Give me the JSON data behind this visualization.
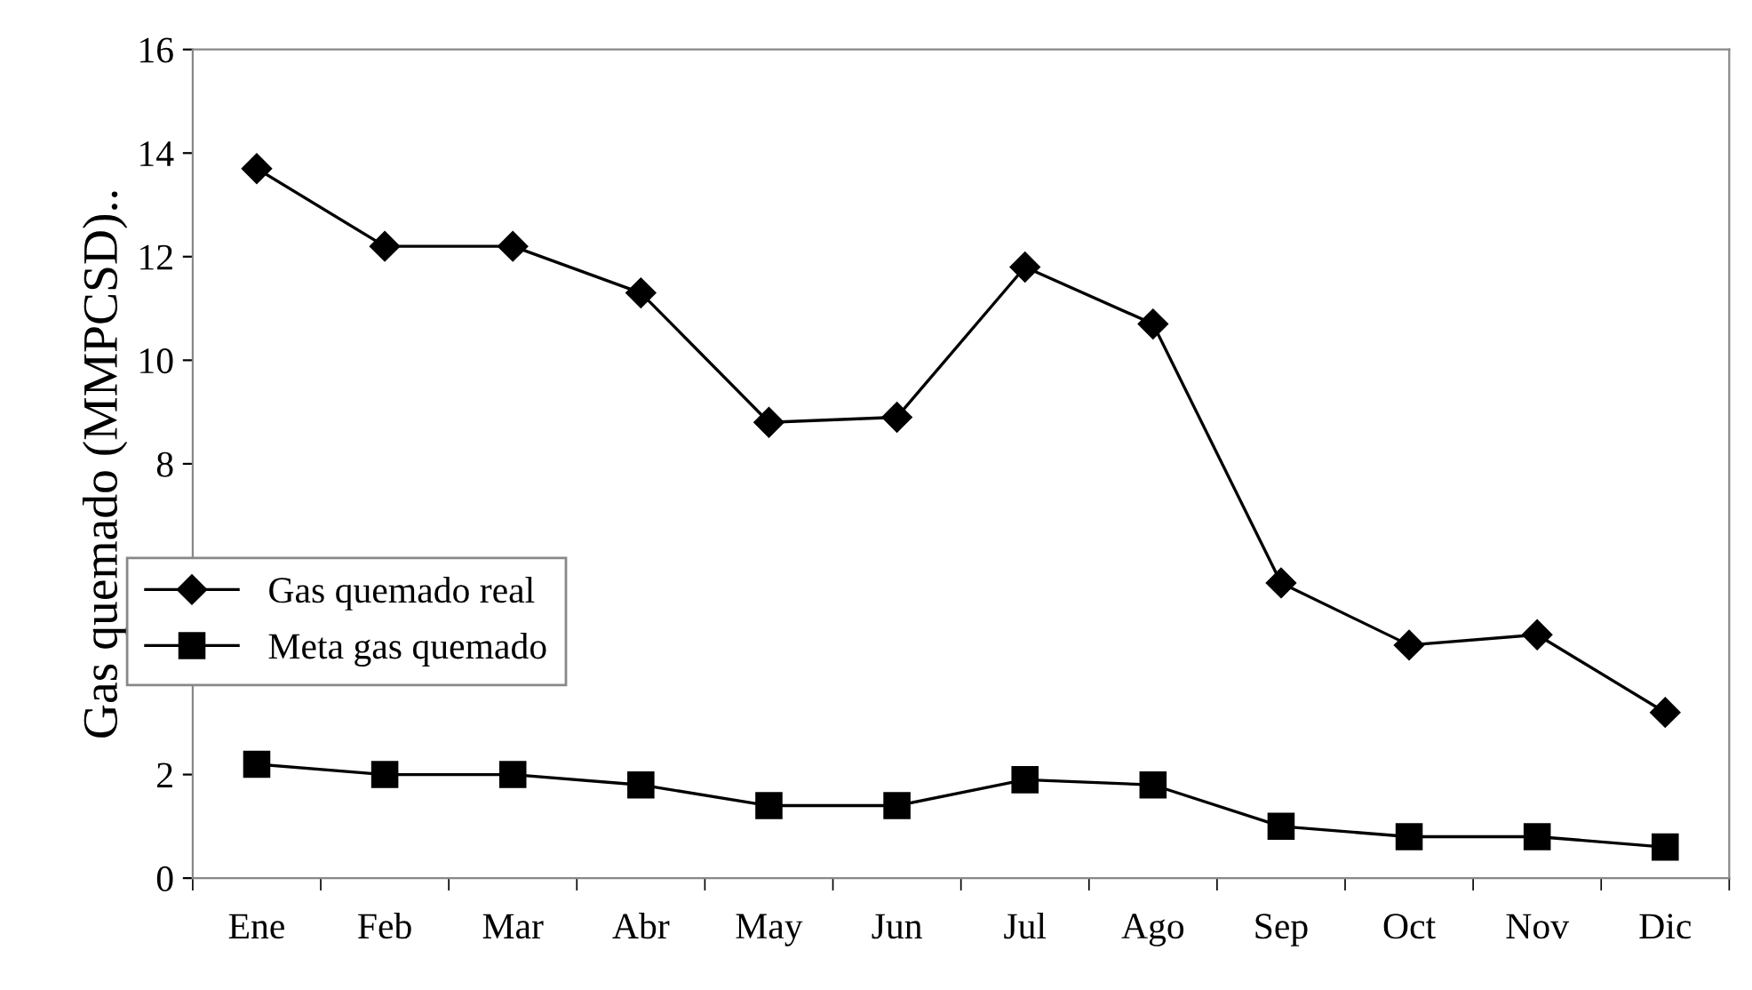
{
  "chart_data": {
    "type": "line",
    "ylabel": "Gas quemado (MMPCSD)..",
    "categories": [
      "Ene",
      "Feb",
      "Mar",
      "Abr",
      "May",
      "Jun",
      "Jul",
      "Ago",
      "Sep",
      "Oct",
      "Nov",
      "Dic"
    ],
    "series": [
      {
        "name": "Gas quemado real",
        "color": "#000000",
        "marker": "diamond",
        "values": [
          13.7,
          12.2,
          12.2,
          11.3,
          8.8,
          8.9,
          11.8,
          10.7,
          5.7,
          4.5,
          4.7,
          3.2
        ]
      },
      {
        "name": "Meta gas quemado",
        "color": "#000000",
        "marker": "square",
        "values": [
          2.2,
          2.0,
          2.0,
          1.8,
          1.4,
          1.4,
          1.9,
          1.8,
          1.0,
          0.8,
          0.8,
          0.6
        ]
      }
    ],
    "ylim": [
      0,
      16
    ],
    "yticks": [
      0,
      2,
      8,
      10,
      12,
      14,
      16
    ],
    "grid": false,
    "legend": "left",
    "line_style": "solid"
  }
}
